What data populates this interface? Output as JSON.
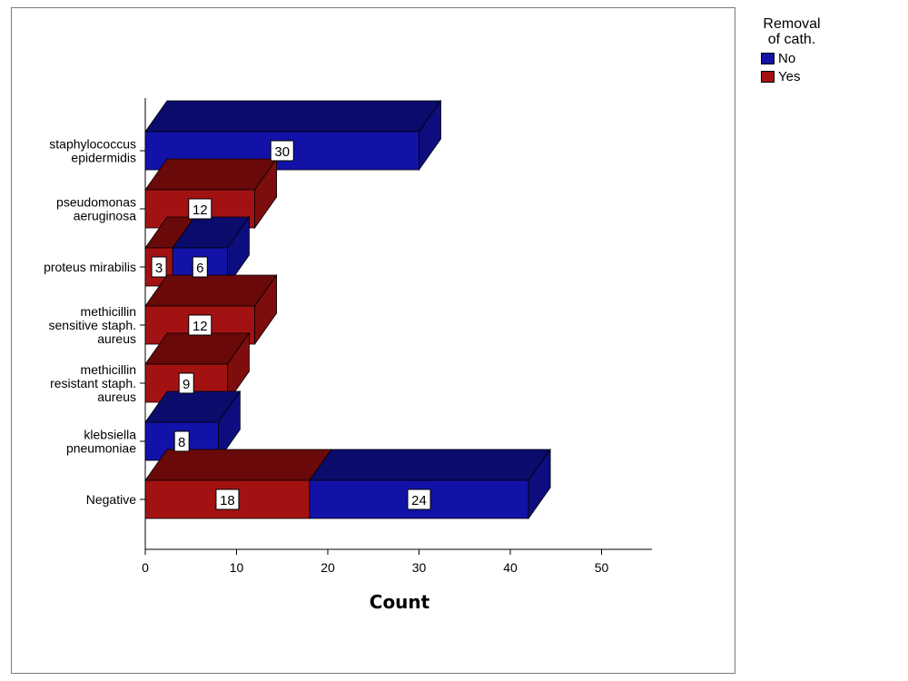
{
  "chart_data": {
    "type": "bar",
    "orientation": "horizontal",
    "stacked": true,
    "three_d": true,
    "categories": [
      [
        "staphylococcus",
        "epidermidis"
      ],
      [
        "pseudomonas",
        "aeruginosa"
      ],
      [
        "proteus mirabilis"
      ],
      [
        "methicillin",
        "sensitive staph.",
        "aureus"
      ],
      [
        "methicillin",
        "resistant  staph.",
        "aureus"
      ],
      [
        "klebsiella",
        "pneumoniae"
      ],
      [
        "Negative"
      ]
    ],
    "series": [
      {
        "name": "Yes",
        "color": "#a31212",
        "top_color": "#6a0909",
        "side_color": "#7e0d0d",
        "values": [
          0,
          12,
          3,
          12,
          9,
          0,
          18
        ]
      },
      {
        "name": "No",
        "color": "#1212a8",
        "top_color": "#0b0b6c",
        "side_color": "#0d0d80",
        "values": [
          30,
          0,
          6,
          0,
          0,
          8,
          24
        ]
      }
    ],
    "data_labels": true,
    "xlabel": "Count",
    "xlim": [
      0,
      55
    ],
    "xticks": [
      0,
      10,
      20,
      30,
      40,
      50
    ],
    "grid": false,
    "legend": {
      "title": [
        "Removal",
        "of cath."
      ],
      "entries": [
        {
          "label": "No",
          "color": "#1212a8"
        },
        {
          "label": "Yes",
          "color": "#a31212"
        }
      ],
      "position": "right"
    }
  }
}
